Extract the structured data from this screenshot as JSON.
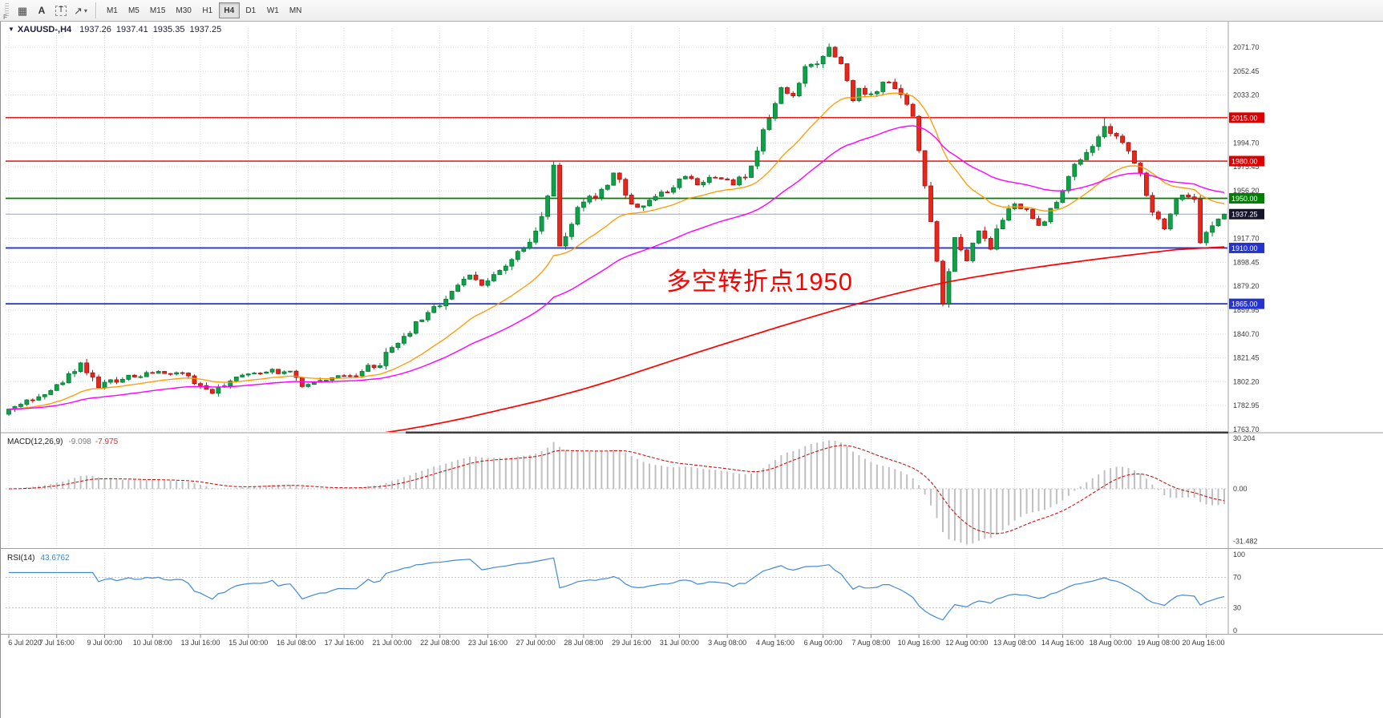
{
  "toolbar": {
    "corner_label": "F",
    "dropdown_caret": "▾",
    "tools": [
      {
        "id": "grid",
        "glyph": "▦"
      },
      {
        "id": "text-annotation",
        "glyph": "A"
      },
      {
        "id": "text-label",
        "glyph": "T"
      },
      {
        "id": "shapes",
        "glyph": "↗"
      }
    ],
    "timeframes": [
      "M1",
      "M5",
      "M15",
      "M30",
      "H1",
      "H4",
      "D1",
      "W1",
      "MN"
    ],
    "active_timeframe": "H4"
  },
  "chart_header": {
    "collapse_icon": "▼",
    "symbol_tf": "XAUUSD-,H4",
    "open": "1937.26",
    "high": "1937.41",
    "low": "1935.35",
    "close": "1937.25"
  },
  "chart_data": {
    "type": "candlestick",
    "title": "XAUUSD-,H4",
    "symbol": "XAUUSD-",
    "timeframe": "H4",
    "quote": {
      "open": 1937.26,
      "high": 1937.41,
      "low": 1935.35,
      "close": 1937.25
    },
    "bars": 204,
    "price_axis": {
      "top": 2071.7,
      "step": 19.25,
      "labels": [
        "2071.70",
        "2052.45",
        "2033.20",
        "2013.95",
        "1994.70",
        "1975.45",
        "1956.20",
        "1936.95",
        "1917.70",
        "1898.45",
        "1879.20",
        "1859.95",
        "1840.70",
        "1821.45",
        "1802.20",
        "1782.95",
        "1763.70"
      ]
    },
    "time_labels": [
      "6 Jul 2020",
      "7 Jul 16:00",
      "9 Jul 00:00",
      "10 Jul 08:00",
      "13 Jul 16:00",
      "15 Jul 00:00",
      "16 Jul 08:00",
      "17 Jul 16:00",
      "21 Jul 00:00",
      "22 Jul 08:00",
      "23 Jul 16:00",
      "27 Jul 00:00",
      "28 Jul 08:00",
      "29 Jul 16:00",
      "31 Jul 00:00",
      "3 Aug 08:00",
      "4 Aug 16:00",
      "6 Aug 00:00",
      "7 Aug 08:00",
      "10 Aug 16:00",
      "12 Aug 00:00",
      "13 Aug 08:00",
      "14 Aug 16:00",
      "18 Aug 00:00",
      "19 Aug 08:00",
      "20 Aug 16:00"
    ],
    "label_every_bars": 8,
    "grid_color": "#d9d9d9",
    "levels": [
      {
        "value": 2015.0,
        "label": "2015.00",
        "color": "#dd0000",
        "width": 1.4
      },
      {
        "value": 1980.0,
        "label": "1980.00",
        "color": "#dd0000",
        "width": 1.4
      },
      {
        "value": 1950.0,
        "label": "1950.00",
        "color": "#008000",
        "width": 1.8
      },
      {
        "value": 1910.0,
        "label": "1910.00",
        "color": "#2433cf",
        "width": 1.8
      },
      {
        "value": 1865.0,
        "label": "1865.00",
        "color": "#2433cf",
        "width": 1.8
      }
    ],
    "current_price": {
      "value": 1937.25,
      "label": "1937.25",
      "line_color": "#8fa8cc",
      "badge_color": "#15152e"
    },
    "annotation": {
      "text": "多空转折点1950",
      "color": "#ff0000"
    },
    "candle_colors": {
      "up": "#0fa14a",
      "down": "#e8261c",
      "up_border": "#067a33",
      "down_border": "#ad100d"
    },
    "price_path": [
      [
        0,
        1779
      ],
      [
        4,
        1788
      ],
      [
        7,
        1795
      ],
      [
        10,
        1806
      ],
      [
        12,
        1817
      ],
      [
        15,
        1800
      ],
      [
        20,
        1806
      ],
      [
        26,
        1810
      ],
      [
        30,
        1807
      ],
      [
        34,
        1792
      ],
      [
        38,
        1806
      ],
      [
        43,
        1811
      ],
      [
        47,
        1809
      ],
      [
        49,
        1798
      ],
      [
        53,
        1803
      ],
      [
        58,
        1809
      ],
      [
        62,
        1818
      ],
      [
        66,
        1838
      ],
      [
        70,
        1858
      ],
      [
        73,
        1868
      ],
      [
        77,
        1888
      ],
      [
        79,
        1881
      ],
      [
        82,
        1892
      ],
      [
        85,
        1906
      ],
      [
        87,
        1914
      ],
      [
        89,
        1938
      ],
      [
        90,
        1952
      ],
      [
        91,
        1974
      ],
      [
        92,
        1911
      ],
      [
        93,
        1921
      ],
      [
        94,
        1931
      ],
      [
        96,
        1949
      ],
      [
        98,
        1951
      ],
      [
        100,
        1961
      ],
      [
        101,
        1971
      ],
      [
        103,
        1954
      ],
      [
        105,
        1941
      ],
      [
        107,
        1951
      ],
      [
        110,
        1957
      ],
      [
        113,
        1967
      ],
      [
        115,
        1961
      ],
      [
        118,
        1967
      ],
      [
        121,
        1961
      ],
      [
        124,
        1974
      ],
      [
        126,
        2004
      ],
      [
        129,
        2039
      ],
      [
        131,
        2034
      ],
      [
        133,
        2054
      ],
      [
        135,
        2061
      ],
      [
        137,
        2071
      ],
      [
        139,
        2057
      ],
      [
        141,
        2029
      ],
      [
        142,
        2039
      ],
      [
        144,
        2034
      ],
      [
        147,
        2044
      ],
      [
        149,
        2034
      ],
      [
        151,
        2019
      ],
      [
        153,
        1959
      ],
      [
        155,
        1899
      ],
      [
        156,
        1866
      ],
      [
        157,
        1890
      ],
      [
        158,
        1919
      ],
      [
        160,
        1901
      ],
      [
        162,
        1924
      ],
      [
        164,
        1911
      ],
      [
        166,
        1934
      ],
      [
        168,
        1947
      ],
      [
        170,
        1939
      ],
      [
        172,
        1929
      ],
      [
        173,
        1931
      ],
      [
        175,
        1949
      ],
      [
        177,
        1967
      ],
      [
        179,
        1984
      ],
      [
        181,
        1994
      ],
      [
        183,
        2009
      ],
      [
        185,
        1999
      ],
      [
        187,
        1989
      ],
      [
        189,
        1969
      ],
      [
        191,
        1941
      ],
      [
        193,
        1924
      ],
      [
        194,
        1939
      ],
      [
        196,
        1954
      ],
      [
        198,
        1949
      ],
      [
        199,
        1917
      ],
      [
        201,
        1929
      ],
      [
        202,
        1936
      ],
      [
        203,
        1937.25
      ]
    ],
    "spikes": [
      {
        "bar": 12,
        "high": 1818.2
      },
      {
        "bar": 91,
        "high": 1976.2
      },
      {
        "bar": 137,
        "high": 2074.7
      },
      {
        "bar": 156,
        "low": 1866.4
      },
      {
        "bar": 183,
        "high": 2014.6
      },
      {
        "bar": 199,
        "low": 1915.6
      }
    ],
    "moving_averages": [
      {
        "name": "ema-fast",
        "period": 20,
        "color": "#ff9900",
        "width": 1.3
      },
      {
        "name": "ema-medium",
        "period": 45,
        "color": "#ff00ff",
        "width": 1.4
      },
      {
        "name": "sma-slow",
        "color": "#ff0000",
        "width": 1.7,
        "anchors": [
          [
            0,
            1728
          ],
          [
            40,
            1746
          ],
          [
            70,
            1766
          ],
          [
            95,
            1794
          ],
          [
            115,
            1826
          ],
          [
            135,
            1856
          ],
          [
            150,
            1876
          ],
          [
            160,
            1886
          ],
          [
            175,
            1897
          ],
          [
            190,
            1906
          ],
          [
            203,
            1913
          ]
        ]
      }
    ],
    "macd": {
      "label": "MACD(12,26,9)",
      "params": [
        12,
        26,
        9
      ],
      "main_value": -9.098,
      "signal_value": -7.975,
      "main_display": "-9.098",
      "signal_display": "-7.975",
      "axis_labels": [
        "30.204",
        "0.00",
        "-31.482"
      ],
      "axis_max": 30.204,
      "axis_min": -31.482,
      "histogram_color": "#c0c0c0",
      "signal_color": "#cc0000"
    },
    "rsi": {
      "label": "RSI(14)",
      "period": 14,
      "value": 43.6762,
      "value_display": "43.6762",
      "levels": [
        70,
        30
      ],
      "axis_labels": [
        "100",
        "70",
        "30",
        "0"
      ],
      "line_color": "#4289d6"
    }
  }
}
